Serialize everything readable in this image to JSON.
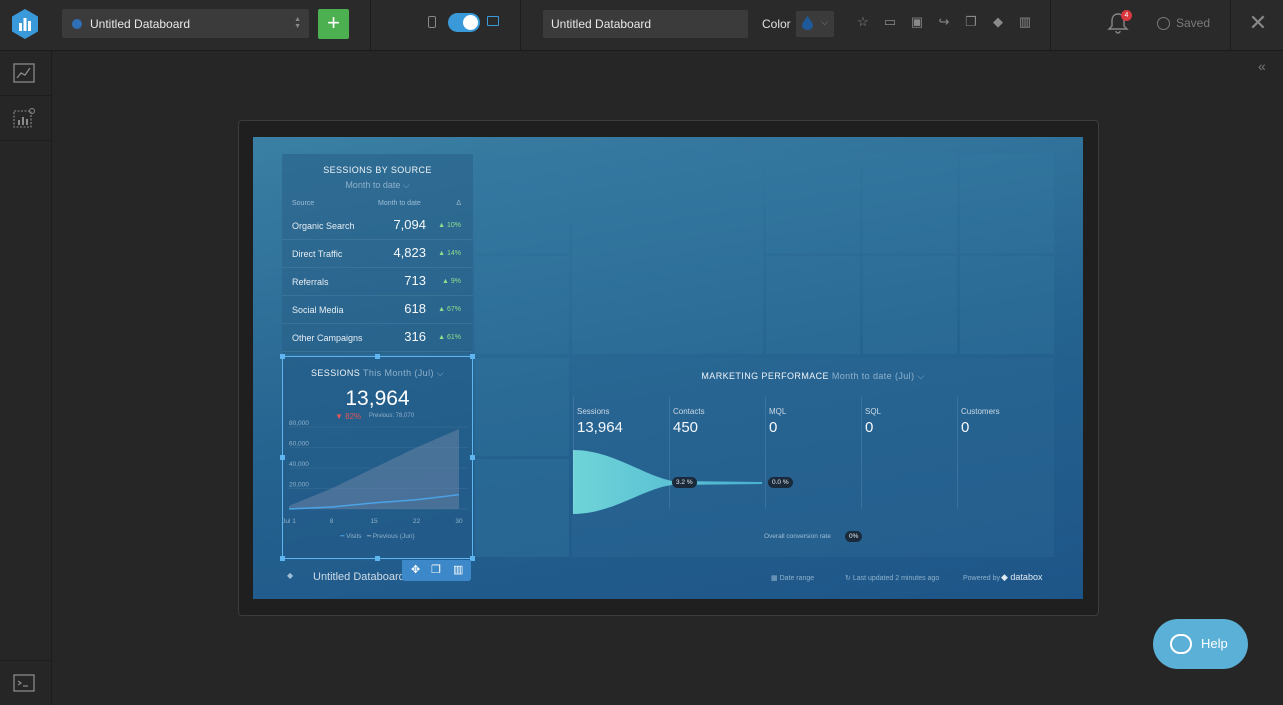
{
  "topbar": {
    "board_name": "Untitled Databoard",
    "title_value": "Untitled Databoard",
    "color_label": "Color",
    "notification_count": "4",
    "saved_label": "Saved"
  },
  "colors": {
    "accent": "#3a9ad9",
    "add_button": "#4caf50",
    "help_button": "#5ab0d6",
    "badge": "#d9363e",
    "board_background": "#24628f"
  },
  "icons": [
    "databox-logo-icon",
    "globe-icon",
    "plus-icon",
    "phone-icon",
    "monitor-icon",
    "water-drop-icon",
    "star-icon",
    "tv-icon",
    "image-icon",
    "share-icon",
    "copy-icon",
    "tag-icon",
    "trash-icon",
    "bell-icon",
    "check-circle-icon",
    "close-icon",
    "chart-panel-icon",
    "add-chart-icon",
    "terminal-icon",
    "chevrons-left-icon",
    "move-icon",
    "duplicate-icon",
    "delete-icon",
    "chat-icon"
  ],
  "sessions_by_source": {
    "title": "SESSIONS BY SOURCE",
    "period": "Month to date",
    "col_source": "Source",
    "col_period": "Month to date",
    "col_delta": "Δ",
    "rows": [
      {
        "source": "Organic Search",
        "value": "7,094",
        "change": "10%"
      },
      {
        "source": "Direct Traffic",
        "value": "4,823",
        "change": "14%"
      },
      {
        "source": "Referrals",
        "value": "713",
        "change": "9%"
      },
      {
        "source": "Social Media",
        "value": "618",
        "change": "67%"
      },
      {
        "source": "Other Campaigns",
        "value": "316",
        "change": "61%"
      }
    ]
  },
  "sessions": {
    "title": "SESSIONS",
    "period": "This Month (Jul)",
    "value": "13,964",
    "change": "82%",
    "previous": "Previous: 78,070",
    "legend_visits": "Visits",
    "legend_previous": "Previous (Jun)"
  },
  "chart_data": {
    "type": "area",
    "x": [
      "Jul 1",
      "8",
      "15",
      "22",
      "30"
    ],
    "yticks": [
      "80,000",
      "60,000",
      "40,000",
      "20,000",
      "0"
    ],
    "ylim": [
      0,
      80000
    ],
    "series": [
      {
        "name": "Visits",
        "values": [
          0,
          2000,
          6000,
          9000,
          13964
        ],
        "color": "#4aa3e6"
      },
      {
        "name": "Previous (Jun)",
        "values": [
          3000,
          20000,
          40000,
          60000,
          78070
        ],
        "color": "#5a7d9a"
      }
    ]
  },
  "marketing": {
    "title": "MARKETING PERFORMACE",
    "period": "Month to date (Jul)",
    "stages": [
      {
        "label": "Sessions",
        "value": "13,964"
      },
      {
        "label": "Contacts",
        "value": "450"
      },
      {
        "label": "MQL",
        "value": "0"
      },
      {
        "label": "SQL",
        "value": "0"
      },
      {
        "label": "Customers",
        "value": "0"
      }
    ],
    "rate_1": "3.2 %",
    "rate_2": "0.0 %",
    "overall_label": "Overall conversion rate",
    "overall_value": "0%"
  },
  "footer": {
    "board_name": "Untitled Databoard",
    "date_range": "Date range",
    "last_updated": "Last updated 2 minutes ago",
    "powered_by": "Powered by",
    "brand": "databox"
  },
  "help": {
    "label": "Help"
  }
}
